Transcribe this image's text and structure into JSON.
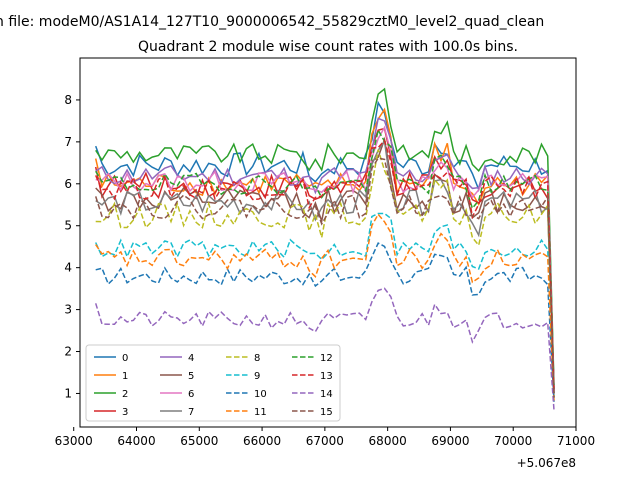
{
  "chart_data": {
    "type": "line",
    "suptitle": "n file: modeM0/AS1A14_127T10_9000006542_55829cztM0_level2_quad_clean",
    "title": "Quadrant 2 module wise count rates with 100.0s bins.",
    "xlabel": "",
    "ylabel": "",
    "x_offset_label": "+5.067e8",
    "xlim": [
      63100,
      71000
    ],
    "ylim": [
      0.2,
      9.0
    ],
    "xticks": [
      63000,
      64000,
      65000,
      66000,
      67000,
      68000,
      69000,
      70000,
      71000
    ],
    "xtick_labels": [
      "63000",
      "64000",
      "65000",
      "66000",
      "67000",
      "68000",
      "69000",
      "70000",
      "71000"
    ],
    "yticks": [
      1,
      2,
      3,
      4,
      5,
      6,
      7,
      8
    ],
    "ytick_labels": [
      "1",
      "2",
      "3",
      "4",
      "5",
      "6",
      "7",
      "8"
    ],
    "grid": false,
    "legend_location": "lower-left",
    "x_start": 63350,
    "x_step": 100,
    "x_end": 70650,
    "series": [
      {
        "name": "0",
        "color": "#1f77b4",
        "style": "solid",
        "base": 6.45,
        "amp": 0.3,
        "end": 1.1,
        "peak": 1.5,
        "start": 6.9
      },
      {
        "name": "1",
        "color": "#ff7f0e",
        "style": "solid",
        "base": 6.0,
        "amp": 0.28,
        "end": 1.0,
        "peak": 2.1,
        "start": 6.6
      },
      {
        "name": "2",
        "color": "#2ca02c",
        "style": "solid",
        "base": 6.7,
        "amp": 0.25,
        "end": 1.2,
        "peak": 1.8,
        "start": 6.8
      },
      {
        "name": "3",
        "color": "#d62728",
        "style": "solid",
        "base": 5.95,
        "amp": 0.3,
        "end": 1.1,
        "peak": 1.5,
        "start": 6.4
      },
      {
        "name": "4",
        "color": "#9467bd",
        "style": "solid",
        "base": 6.2,
        "amp": 0.25,
        "end": 1.0,
        "peak": 1.4,
        "start": 6.3
      },
      {
        "name": "5",
        "color": "#8c564b",
        "style": "solid",
        "base": 5.6,
        "amp": 0.3,
        "end": 1.0,
        "peak": 1.5,
        "start": 5.9
      },
      {
        "name": "6",
        "color": "#e377c2",
        "style": "solid",
        "base": 6.05,
        "amp": 0.25,
        "end": 1.0,
        "peak": 1.3,
        "start": 6.1
      },
      {
        "name": "7",
        "color": "#7f7f7f",
        "style": "solid",
        "base": 5.55,
        "amp": 0.3,
        "end": 1.1,
        "peak": 1.4,
        "start": 5.6
      },
      {
        "name": "8",
        "color": "#bcbd22",
        "style": "dashed",
        "base": 5.25,
        "amp": 0.3,
        "end": 0.9,
        "peak": 1.6,
        "start": 5.1
      },
      {
        "name": "9",
        "color": "#17becf",
        "style": "dashed",
        "base": 4.45,
        "amp": 0.22,
        "end": 0.9,
        "peak": 1.2,
        "start": 4.6
      },
      {
        "name": "10",
        "color": "#1f77b4",
        "style": "dashed",
        "base": 3.8,
        "amp": 0.22,
        "end": 0.8,
        "peak": 1.0,
        "start": 3.95
      },
      {
        "name": "11",
        "color": "#ff7f0e",
        "style": "dashed",
        "base": 4.2,
        "amp": 0.25,
        "end": 0.8,
        "peak": 1.2,
        "start": 4.55
      },
      {
        "name": "12",
        "color": "#2ca02c",
        "style": "dashed",
        "base": 6.0,
        "amp": 0.25,
        "end": 1.0,
        "peak": 1.3,
        "start": 6.3
      },
      {
        "name": "13",
        "color": "#d62728",
        "style": "dashed",
        "base": 5.9,
        "amp": 0.28,
        "end": 1.0,
        "peak": 1.4,
        "start": 6.2
      },
      {
        "name": "14",
        "color": "#9467bd",
        "style": "dashed",
        "base": 2.75,
        "amp": 0.2,
        "end": 0.6,
        "peak": 0.9,
        "start": 3.15
      },
      {
        "name": "15",
        "color": "#8c564b",
        "style": "dashed",
        "base": 5.45,
        "amp": 0.28,
        "end": 0.9,
        "peak": 1.3,
        "start": 5.7
      }
    ]
  }
}
